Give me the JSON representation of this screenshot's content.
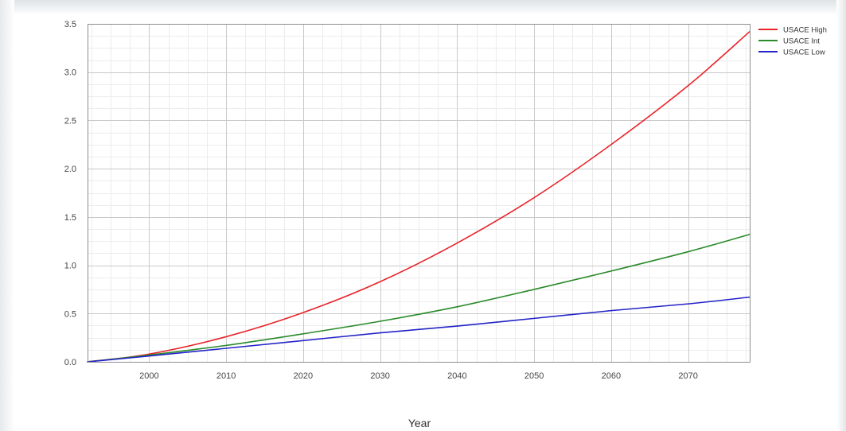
{
  "chart_data": {
    "type": "line",
    "title": "",
    "xlabel": "Year",
    "ylabel": "",
    "xlim": [
      1992,
      2078
    ],
    "ylim": [
      0,
      3.5
    ],
    "x_ticks": [
      2000,
      2010,
      2020,
      2030,
      2040,
      2050,
      2060,
      2070
    ],
    "y_ticks": [
      0.0,
      0.5,
      1.0,
      1.5,
      2.0,
      2.5,
      3.0,
      3.5
    ],
    "y_tick_labels": [
      "0.0",
      "0.5",
      "1.0",
      "1.5",
      "2.0",
      "2.5",
      "3.0",
      "3.5"
    ],
    "grid": true,
    "legend_position": "top-right",
    "x": [
      1992,
      2000,
      2010,
      2020,
      2030,
      2040,
      2050,
      2060,
      2070,
      2078
    ],
    "series": [
      {
        "name": "USACE High",
        "color": "#e8232a",
        "values": [
          0.0,
          0.08,
          0.26,
          0.51,
          0.83,
          1.23,
          1.7,
          2.25,
          2.86,
          3.42
        ]
      },
      {
        "name": "USACE Int",
        "color": "#2a8a2a",
        "values": [
          0.0,
          0.07,
          0.17,
          0.29,
          0.42,
          0.57,
          0.75,
          0.94,
          1.14,
          1.32
        ]
      },
      {
        "name": "USACE Low",
        "color": "#2323c8",
        "values": [
          0.0,
          0.06,
          0.14,
          0.22,
          0.3,
          0.37,
          0.45,
          0.53,
          0.6,
          0.67
        ]
      }
    ]
  }
}
